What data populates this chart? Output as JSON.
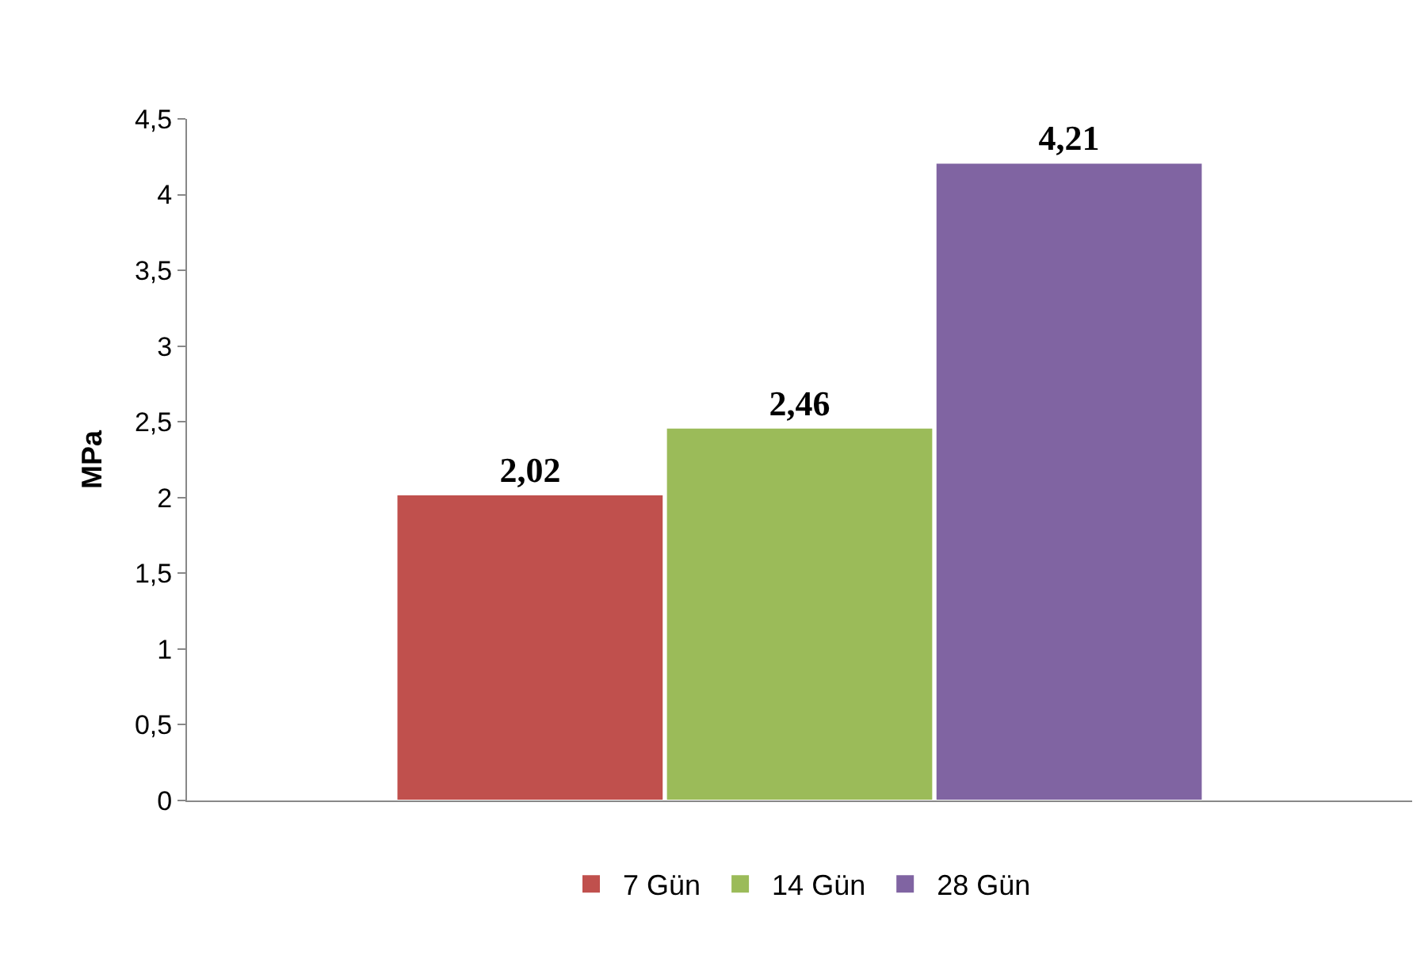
{
  "chart_data": {
    "type": "bar",
    "ylabel": "MPa",
    "categories": [
      null
    ],
    "series": [
      {
        "name": "7 Gün",
        "color": "#c0504d",
        "values": [
          2.02
        ],
        "value_labels": [
          "2,02"
        ]
      },
      {
        "name": "14 Gün",
        "color": "#9bbb59",
        "values": [
          2.46
        ],
        "value_labels": [
          "2,46"
        ]
      },
      {
        "name": "28 Gün",
        "color": "#8064a2",
        "values": [
          4.21
        ],
        "value_labels": [
          "4,21"
        ]
      }
    ],
    "ylim": [
      0,
      4.5
    ],
    "yticks": [
      0,
      {
        "value": 0.5,
        "label": "0,5"
      },
      1,
      {
        "value": 1.5,
        "label": "1,5"
      },
      2,
      {
        "value": 2.5,
        "label": "2,5"
      },
      3,
      {
        "value": 3.5,
        "label": "3,5"
      },
      4,
      {
        "value": 4.5,
        "label": "4,5"
      }
    ],
    "legend": "bottom"
  }
}
